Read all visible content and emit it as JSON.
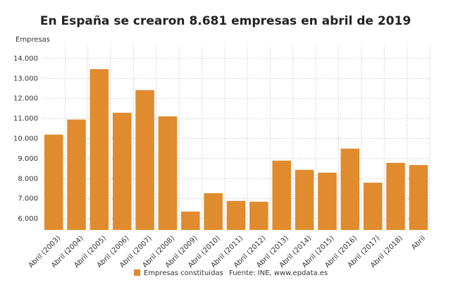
{
  "chart_data": {
    "type": "bar",
    "title": "En España se crearon 8.681 empresas en abril de 2019",
    "y_label": "Empresas",
    "categories": [
      "Abril (2003)",
      "Abril (2004)",
      "Abril (2005)",
      "Abril (2006)",
      "Abril (2007)",
      "Abril (2008)",
      "Abril (2009)",
      "Abril (2010)",
      "Abril (2011)",
      "Abril (2012)",
      "Abril (2013)",
      "Abril (2014)",
      "Abril (2015)",
      "Abril (2016)",
      "Abril (2017)",
      "Abril (2018)",
      "Abril"
    ],
    "series": [
      {
        "name": "Empresas constituidas",
        "color": "#e08b2e",
        "values": [
          10200,
          10950,
          13470,
          11290,
          12420,
          11110,
          6360,
          7275,
          6890,
          6850,
          8900,
          8440,
          8300,
          9500,
          7800,
          8790,
          8681
        ]
      }
    ],
    "ylim": [
      5440,
      14630
    ],
    "yticks": [
      {
        "value": 6000,
        "label": "6.000"
      },
      {
        "value": 7000,
        "label": "7.000"
      },
      {
        "value": 8000,
        "label": "8.000"
      },
      {
        "value": 9000,
        "label": "9.000"
      },
      {
        "value": 10000,
        "label": "10.000"
      },
      {
        "value": 11000,
        "label": "11.000"
      },
      {
        "value": 12000,
        "label": "12.000"
      },
      {
        "value": 13000,
        "label": "13.000"
      },
      {
        "value": 14000,
        "label": "14.000"
      }
    ],
    "grid": true,
    "source": "Fuente: INE, www.epdata.es"
  }
}
